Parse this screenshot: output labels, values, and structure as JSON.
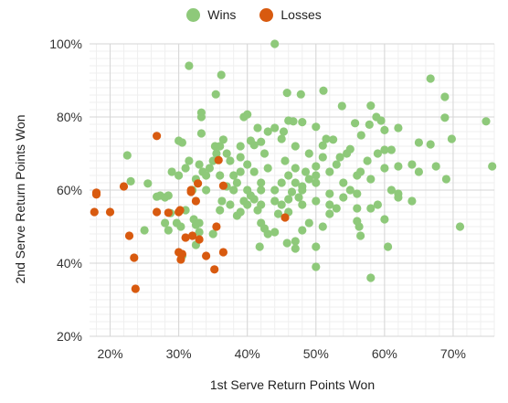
{
  "chart_data": {
    "type": "scatter",
    "xlabel": "1st Serve Return Points Won",
    "ylabel": "2nd Serve Return Points Won",
    "xlim": [
      0.17,
      0.76
    ],
    "ylim": [
      0.2,
      1.0
    ],
    "x_ticks": [
      0.2,
      0.3,
      0.4,
      0.5,
      0.6,
      0.7
    ],
    "x_tick_labels": [
      "20%",
      "30%",
      "40%",
      "50%",
      "60%",
      "70%"
    ],
    "y_ticks": [
      0.2,
      0.4,
      0.6,
      0.8,
      1.0
    ],
    "y_tick_labels": [
      "20%",
      "40%",
      "60%",
      "80%",
      "100%"
    ],
    "grid": true,
    "legend_position": "top-center",
    "series": [
      {
        "name": "Wins",
        "color": "#8ec97a",
        "points": [
          [
            0.44,
            1.0
          ],
          [
            0.315,
            0.94
          ],
          [
            0.362,
            0.915
          ],
          [
            0.667,
            0.905
          ],
          [
            0.688,
            0.855
          ],
          [
            0.478,
            0.862
          ],
          [
            0.511,
            0.872
          ],
          [
            0.354,
            0.862
          ],
          [
            0.458,
            0.866
          ],
          [
            0.538,
            0.83
          ],
          [
            0.58,
            0.831
          ],
          [
            0.748,
            0.788
          ],
          [
            0.688,
            0.798
          ],
          [
            0.395,
            0.8
          ],
          [
            0.4,
            0.807
          ],
          [
            0.333,
            0.812
          ],
          [
            0.333,
            0.8
          ],
          [
            0.588,
            0.8
          ],
          [
            0.595,
            0.79
          ],
          [
            0.557,
            0.783
          ],
          [
            0.467,
            0.788
          ],
          [
            0.48,
            0.786
          ],
          [
            0.44,
            0.77
          ],
          [
            0.453,
            0.76
          ],
          [
            0.5,
            0.773
          ],
          [
            0.415,
            0.77
          ],
          [
            0.578,
            0.779
          ],
          [
            0.62,
            0.77
          ],
          [
            0.6,
            0.764
          ],
          [
            0.333,
            0.755
          ],
          [
            0.305,
            0.73
          ],
          [
            0.3,
            0.735
          ],
          [
            0.353,
            0.72
          ],
          [
            0.365,
            0.738
          ],
          [
            0.515,
            0.74
          ],
          [
            0.525,
            0.738
          ],
          [
            0.51,
            0.722
          ],
          [
            0.55,
            0.712
          ],
          [
            0.566,
            0.75
          ],
          [
            0.65,
            0.73
          ],
          [
            0.667,
            0.725
          ],
          [
            0.698,
            0.74
          ],
          [
            0.405,
            0.735
          ],
          [
            0.39,
            0.72
          ],
          [
            0.41,
            0.723
          ],
          [
            0.42,
            0.732
          ],
          [
            0.225,
            0.695
          ],
          [
            0.255,
            0.618
          ],
          [
            0.23,
            0.624
          ],
          [
            0.273,
            0.585
          ],
          [
            0.28,
            0.58
          ],
          [
            0.285,
            0.585
          ],
          [
            0.268,
            0.582
          ],
          [
            0.28,
            0.51
          ],
          [
            0.25,
            0.49
          ],
          [
            0.285,
            0.49
          ],
          [
            0.288,
            0.537
          ],
          [
            0.297,
            0.51
          ],
          [
            0.303,
            0.5
          ],
          [
            0.322,
            0.52
          ],
          [
            0.325,
            0.505
          ],
          [
            0.33,
            0.51
          ],
          [
            0.31,
            0.545
          ],
          [
            0.325,
            0.45
          ],
          [
            0.305,
            0.42
          ],
          [
            0.33,
            0.485
          ],
          [
            0.35,
            0.48
          ],
          [
            0.36,
            0.545
          ],
          [
            0.363,
            0.57
          ],
          [
            0.37,
            0.61
          ],
          [
            0.375,
            0.56
          ],
          [
            0.385,
            0.53
          ],
          [
            0.39,
            0.54
          ],
          [
            0.395,
            0.57
          ],
          [
            0.4,
            0.56
          ],
          [
            0.405,
            0.585
          ],
          [
            0.41,
            0.575
          ],
          [
            0.415,
            0.545
          ],
          [
            0.42,
            0.6
          ],
          [
            0.42,
            0.51
          ],
          [
            0.425,
            0.495
          ],
          [
            0.43,
            0.48
          ],
          [
            0.418,
            0.445
          ],
          [
            0.44,
            0.485
          ],
          [
            0.445,
            0.535
          ],
          [
            0.45,
            0.56
          ],
          [
            0.46,
            0.575
          ],
          [
            0.465,
            0.595
          ],
          [
            0.47,
            0.62
          ],
          [
            0.475,
            0.58
          ],
          [
            0.48,
            0.6
          ],
          [
            0.47,
            0.46
          ],
          [
            0.47,
            0.44
          ],
          [
            0.458,
            0.455
          ],
          [
            0.48,
            0.49
          ],
          [
            0.49,
            0.51
          ],
          [
            0.5,
            0.445
          ],
          [
            0.5,
            0.39
          ],
          [
            0.51,
            0.5
          ],
          [
            0.52,
            0.535
          ],
          [
            0.52,
            0.56
          ],
          [
            0.53,
            0.55
          ],
          [
            0.54,
            0.58
          ],
          [
            0.55,
            0.6
          ],
          [
            0.56,
            0.59
          ],
          [
            0.56,
            0.515
          ],
          [
            0.563,
            0.5
          ],
          [
            0.565,
            0.475
          ],
          [
            0.58,
            0.55
          ],
          [
            0.58,
            0.36
          ],
          [
            0.59,
            0.56
          ],
          [
            0.6,
            0.52
          ],
          [
            0.605,
            0.445
          ],
          [
            0.61,
            0.6
          ],
          [
            0.62,
            0.58
          ],
          [
            0.64,
            0.57
          ],
          [
            0.65,
            0.65
          ],
          [
            0.69,
            0.63
          ],
          [
            0.71,
            0.5
          ],
          [
            0.757,
            0.665
          ],
          [
            0.675,
            0.665
          ],
          [
            0.62,
            0.665
          ],
          [
            0.6,
            0.71
          ],
          [
            0.61,
            0.71
          ],
          [
            0.59,
            0.7
          ],
          [
            0.575,
            0.68
          ],
          [
            0.565,
            0.65
          ],
          [
            0.56,
            0.64
          ],
          [
            0.545,
            0.7
          ],
          [
            0.535,
            0.69
          ],
          [
            0.53,
            0.67
          ],
          [
            0.52,
            0.65
          ],
          [
            0.5,
            0.665
          ],
          [
            0.5,
            0.64
          ],
          [
            0.5,
            0.62
          ],
          [
            0.49,
            0.63
          ],
          [
            0.485,
            0.65
          ],
          [
            0.48,
            0.61
          ],
          [
            0.47,
            0.66
          ],
          [
            0.46,
            0.64
          ],
          [
            0.455,
            0.68
          ],
          [
            0.45,
            0.62
          ],
          [
            0.44,
            0.6
          ],
          [
            0.43,
            0.66
          ],
          [
            0.425,
            0.7
          ],
          [
            0.42,
            0.62
          ],
          [
            0.41,
            0.65
          ],
          [
            0.4,
            0.67
          ],
          [
            0.39,
            0.65
          ],
          [
            0.385,
            0.62
          ],
          [
            0.38,
            0.64
          ],
          [
            0.375,
            0.68
          ],
          [
            0.37,
            0.7
          ],
          [
            0.36,
            0.72
          ],
          [
            0.355,
            0.7
          ],
          [
            0.35,
            0.68
          ],
          [
            0.345,
            0.66
          ],
          [
            0.34,
            0.64
          ],
          [
            0.335,
            0.65
          ],
          [
            0.33,
            0.67
          ],
          [
            0.325,
            0.63
          ],
          [
            0.32,
            0.6
          ],
          [
            0.31,
            0.66
          ],
          [
            0.3,
            0.64
          ],
          [
            0.29,
            0.65
          ],
          [
            0.315,
            0.68
          ],
          [
            0.34,
            0.6
          ],
          [
            0.36,
            0.64
          ],
          [
            0.38,
            0.6
          ],
          [
            0.4,
            0.6
          ],
          [
            0.42,
            0.56
          ],
          [
            0.44,
            0.57
          ],
          [
            0.46,
            0.54
          ],
          [
            0.48,
            0.56
          ],
          [
            0.5,
            0.57
          ],
          [
            0.52,
            0.59
          ],
          [
            0.54,
            0.62
          ],
          [
            0.56,
            0.55
          ],
          [
            0.58,
            0.63
          ],
          [
            0.6,
            0.66
          ],
          [
            0.62,
            0.59
          ],
          [
            0.64,
            0.67
          ],
          [
            0.49,
            0.7
          ],
          [
            0.47,
            0.72
          ],
          [
            0.45,
            0.74
          ],
          [
            0.43,
            0.76
          ],
          [
            0.46,
            0.79
          ],
          [
            0.51,
            0.69
          ],
          [
            0.39,
            0.69
          ]
        ]
      },
      {
        "name": "Losses",
        "color": "#d85a0f",
        "points": [
          [
            0.268,
            0.748
          ],
          [
            0.358,
            0.682
          ],
          [
            0.365,
            0.612
          ],
          [
            0.318,
            0.6
          ],
          [
            0.328,
            0.618
          ],
          [
            0.318,
            0.595
          ],
          [
            0.22,
            0.61
          ],
          [
            0.18,
            0.593
          ],
          [
            0.18,
            0.588
          ],
          [
            0.177,
            0.54
          ],
          [
            0.2,
            0.54
          ],
          [
            0.268,
            0.54
          ],
          [
            0.285,
            0.538
          ],
          [
            0.3,
            0.54
          ],
          [
            0.302,
            0.545
          ],
          [
            0.325,
            0.57
          ],
          [
            0.31,
            0.47
          ],
          [
            0.32,
            0.475
          ],
          [
            0.33,
            0.465
          ],
          [
            0.34,
            0.42
          ],
          [
            0.355,
            0.5
          ],
          [
            0.365,
            0.43
          ],
          [
            0.228,
            0.475
          ],
          [
            0.235,
            0.415
          ],
          [
            0.3,
            0.43
          ],
          [
            0.305,
            0.425
          ],
          [
            0.303,
            0.41
          ],
          [
            0.352,
            0.383
          ],
          [
            0.237,
            0.33
          ],
          [
            0.455,
            0.525
          ]
        ]
      }
    ]
  }
}
